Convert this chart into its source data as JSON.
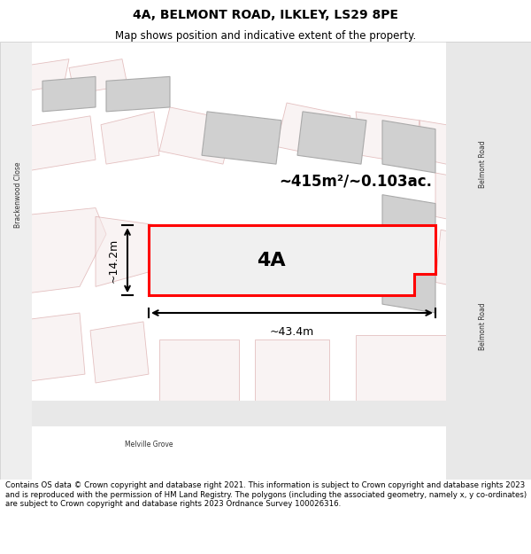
{
  "title_line1": "4A, BELMONT ROAD, ILKLEY, LS29 8PE",
  "title_line2": "Map shows position and indicative extent of the property.",
  "footer_text": "Contains OS data © Crown copyright and database right 2021. This information is subject to Crown copyright and database rights 2023 and is reproduced with the permission of HM Land Registry. The polygons (including the associated geometry, namely x, y co-ordinates) are subject to Crown copyright and database rights 2023 Ordnance Survey 100026316.",
  "label_4A": "4A",
  "area_label": "~415m²/~0.103ac.",
  "width_label": "~43.4m",
  "height_label": "~14.2m",
  "bg_color": "#f5f5f5",
  "map_bg": "#ffffff",
  "road_color": "#d4d4d4",
  "building_fill": "#d8d8d8",
  "building_edge": "#aaaaaa",
  "highlight_fill": "#f0f0f0",
  "highlight_edge": "#ff0000",
  "street_label_brackenwood": "Brackenwood Close",
  "street_label_belmont_top": "Belmont Road",
  "street_label_belmont_bottom": "Belmont Road",
  "street_label_melville": "Melville Grove"
}
